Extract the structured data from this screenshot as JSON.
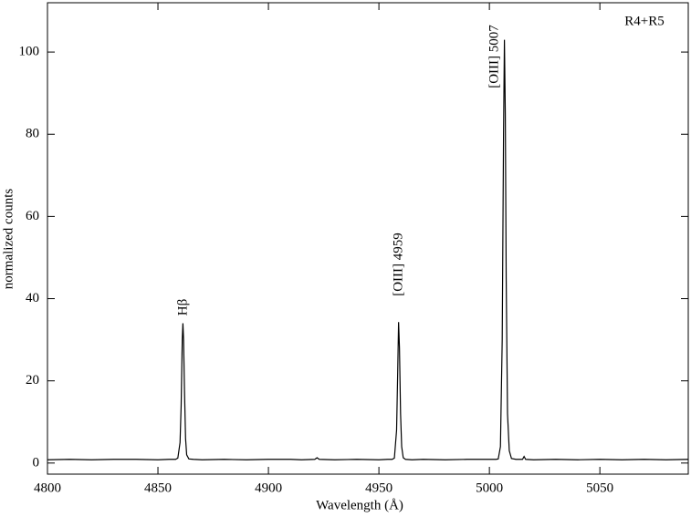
{
  "chart_data": {
    "type": "line",
    "xlabel": "Wavelength  (Å)",
    "ylabel": "normalized counts",
    "annotations": [
      "Hβ",
      "[OIII] 4959",
      "[OIII] 5007",
      "R4+R5"
    ],
    "color": "#000000",
    "x": [
      4800,
      4810,
      4820,
      4830,
      4840,
      4850,
      4855,
      4858,
      4859,
      4860,
      4860.5,
      4861,
      4861.3,
      4861.6,
      4862,
      4862.5,
      4863,
      4864,
      4866,
      4870,
      4880,
      4890,
      4900,
      4910,
      4915,
      4921,
      4922,
      4923,
      4930,
      4940,
      4950,
      4954,
      4956,
      4957,
      4958,
      4958.5,
      4958.9,
      4959.3,
      4959.8,
      4960.3,
      4961,
      4962,
      4965,
      4970,
      4980,
      4990,
      5000,
      5003,
      5004,
      5005,
      5005.8,
      5006.4,
      5006.8,
      5007.2,
      5007.6,
      5008.2,
      5009,
      5010,
      5012,
      5015,
      5015.7,
      5016.4,
      5020,
      5030,
      5040,
      5050,
      5060,
      5070,
      5080,
      5090
    ],
    "values": [
      0.8,
      0.9,
      0.8,
      0.9,
      0.9,
      0.8,
      0.9,
      0.9,
      1.2,
      5,
      14,
      30,
      34,
      30,
      18,
      6,
      2,
      1.0,
      0.9,
      0.8,
      0.9,
      0.8,
      0.9,
      0.9,
      0.8,
      0.9,
      1.3,
      0.9,
      0.8,
      0.9,
      0.8,
      0.9,
      0.9,
      1.2,
      8,
      22,
      34.3,
      28,
      12,
      4,
      1.3,
      0.9,
      0.8,
      0.9,
      0.8,
      0.9,
      0.9,
      0.9,
      1.0,
      4,
      30,
      80,
      103,
      85,
      45,
      12,
      3,
      1.1,
      0.9,
      0.9,
      1.6,
      0.9,
      0.8,
      0.9,
      0.8,
      0.9,
      0.8,
      0.9,
      0.8,
      0.9
    ],
    "xlim": [
      4800,
      5090
    ],
    "ylim": [
      -2.7,
      112
    ],
    "xticks": [
      4800,
      4850,
      4900,
      4950,
      5000,
      5050
    ],
    "yticks": [
      0,
      20,
      40,
      60,
      80,
      100
    ]
  }
}
